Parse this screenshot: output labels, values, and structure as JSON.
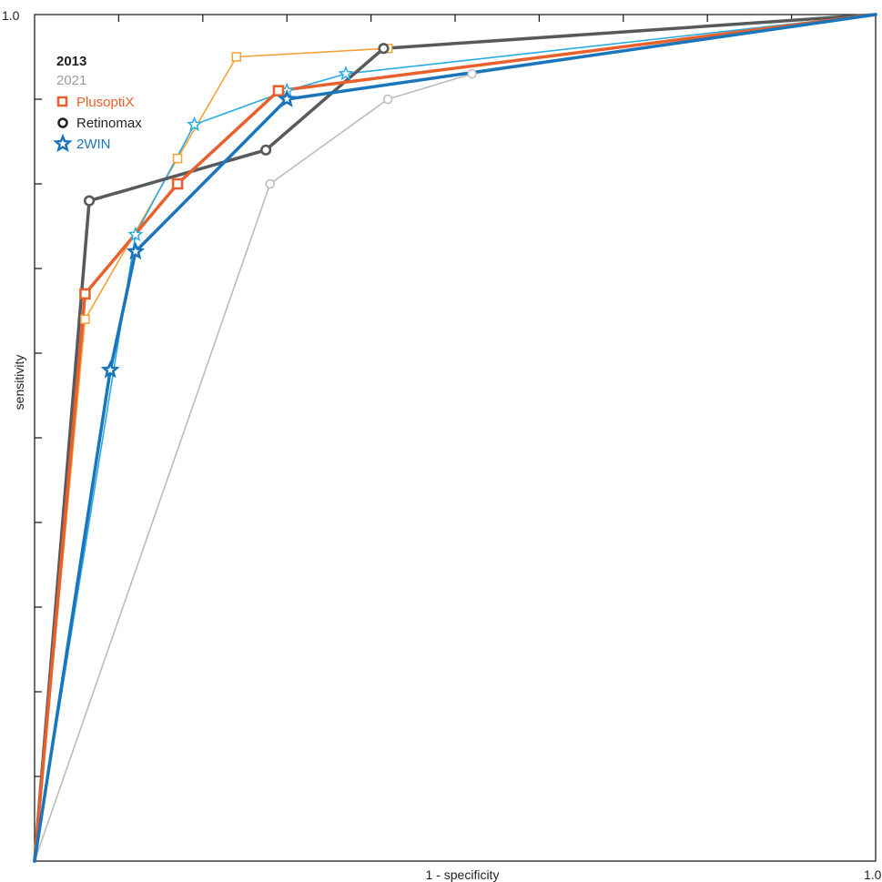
{
  "chart_data": {
    "type": "line",
    "title": "",
    "xlabel": "1 - specificity",
    "ylabel": "sensitivity",
    "xlim": [
      0,
      1
    ],
    "ylim": [
      0,
      1
    ],
    "tick_labels": {
      "x_end": "1.0",
      "y_top": "1.0"
    },
    "legend": {
      "placement": "top-left",
      "years": [
        {
          "label": "2013",
          "color": "#231f20",
          "weight": "bold"
        },
        {
          "label": "2021",
          "color": "#999999",
          "weight": "normal"
        }
      ],
      "devices": [
        {
          "label": "PlusoptiX",
          "color": "#e8602c",
          "marker": "square"
        },
        {
          "label": "Retinomax",
          "color": "#231f20",
          "marker": "circle"
        },
        {
          "label": "2WIN",
          "color": "#1b75bb",
          "marker": "star"
        }
      ]
    },
    "series": [
      {
        "name": "PlusoptiX 2021",
        "year": "2021",
        "device": "PlusoptiX",
        "color": "#f4a235",
        "stroke": 1.6,
        "marker": "square",
        "points": [
          [
            0,
            0
          ],
          [
            0.06,
            0.64
          ],
          [
            0.17,
            0.83
          ],
          [
            0.24,
            0.95
          ],
          [
            0.42,
            0.96
          ],
          [
            1,
            1
          ]
        ]
      },
      {
        "name": "Retinomax 2021",
        "year": "2021",
        "device": "Retinomax",
        "color": "#bbbbbb",
        "stroke": 1.6,
        "marker": "circle",
        "points": [
          [
            0,
            0
          ],
          [
            0.28,
            0.8
          ],
          [
            0.42,
            0.9
          ],
          [
            0.52,
            0.93
          ],
          [
            1,
            1
          ]
        ]
      },
      {
        "name": "2WIN 2021",
        "year": "2021",
        "device": "2WIN",
        "color": "#29abe2",
        "stroke": 1.6,
        "marker": "star",
        "points": [
          [
            0,
            0
          ],
          [
            0.12,
            0.74
          ],
          [
            0.19,
            0.87
          ],
          [
            0.3,
            0.91
          ],
          [
            0.37,
            0.93
          ],
          [
            1,
            1
          ]
        ]
      },
      {
        "name": "Retinomax 2013",
        "year": "2013",
        "device": "Retinomax",
        "color": "#58595b",
        "stroke": 3.5,
        "marker": "circle",
        "points": [
          [
            0,
            0
          ],
          [
            0.065,
            0.78
          ],
          [
            0.275,
            0.84
          ],
          [
            0.415,
            0.96
          ],
          [
            1,
            1
          ]
        ]
      },
      {
        "name": "PlusoptiX 2013",
        "year": "2013",
        "device": "PlusoptiX",
        "color": "#e8602c",
        "stroke": 3.5,
        "marker": "square",
        "points": [
          [
            0,
            0
          ],
          [
            0.06,
            0.67
          ],
          [
            0.17,
            0.8
          ],
          [
            0.29,
            0.91
          ],
          [
            1,
            1
          ]
        ]
      },
      {
        "name": "2WIN 2013",
        "year": "2013",
        "device": "2WIN",
        "color": "#1b75bb",
        "stroke": 3.5,
        "marker": "star",
        "points": [
          [
            0,
            0
          ],
          [
            0.09,
            0.58
          ],
          [
            0.12,
            0.72
          ],
          [
            0.3,
            0.9
          ],
          [
            1,
            1
          ]
        ]
      }
    ],
    "grid": false
  }
}
